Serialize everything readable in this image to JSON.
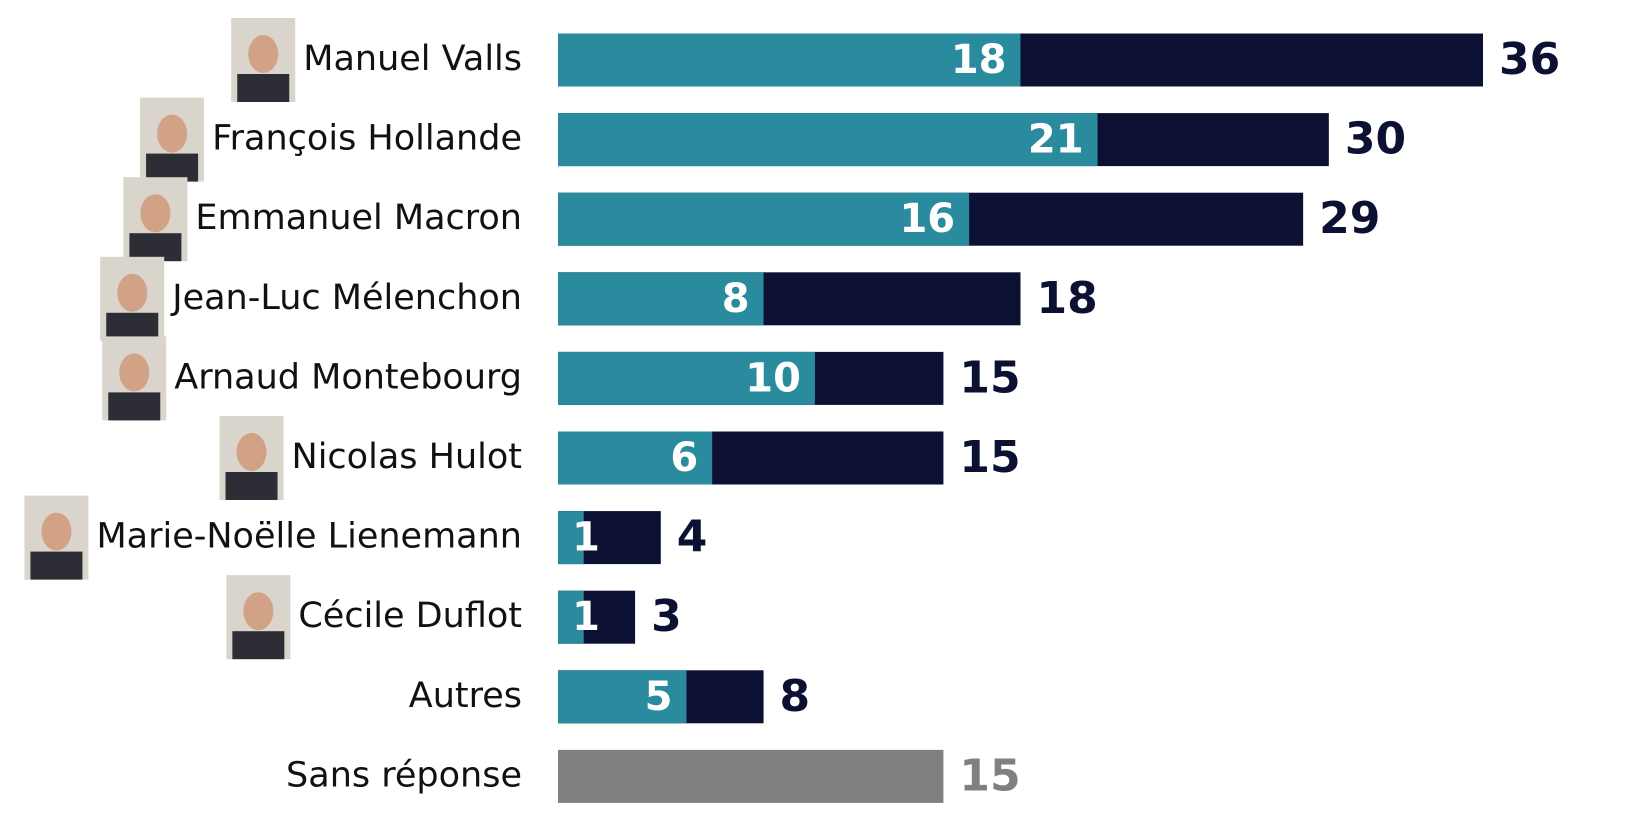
{
  "chart_data": {
    "type": "bar",
    "orientation": "horizontal",
    "categories": [
      "Manuel Valls",
      "François Hollande",
      "Emmanuel Macron",
      "Jean-Luc Mélenchon",
      "Arnaud Montebourg",
      "Nicolas Hulot",
      "Marie-Noëlle Lienemann",
      "Cécile Duflot",
      "Autres",
      "Sans réponse"
    ],
    "series": [
      {
        "color": "#0c1033",
        "values": [
          36,
          30,
          29,
          18,
          15,
          15,
          4,
          3,
          8,
          15
        ],
        "colors": [
          "#0c1033",
          "#0c1033",
          "#0c1033",
          "#0c1033",
          "#0c1033",
          "#0c1033",
          "#0c1033",
          "#0c1033",
          "#0c1033",
          "#808080"
        ]
      },
      {
        "color": "#2a8a9e",
        "values": [
          18,
          21,
          16,
          8,
          10,
          6,
          1,
          1,
          5,
          null
        ]
      }
    ]
  }
}
